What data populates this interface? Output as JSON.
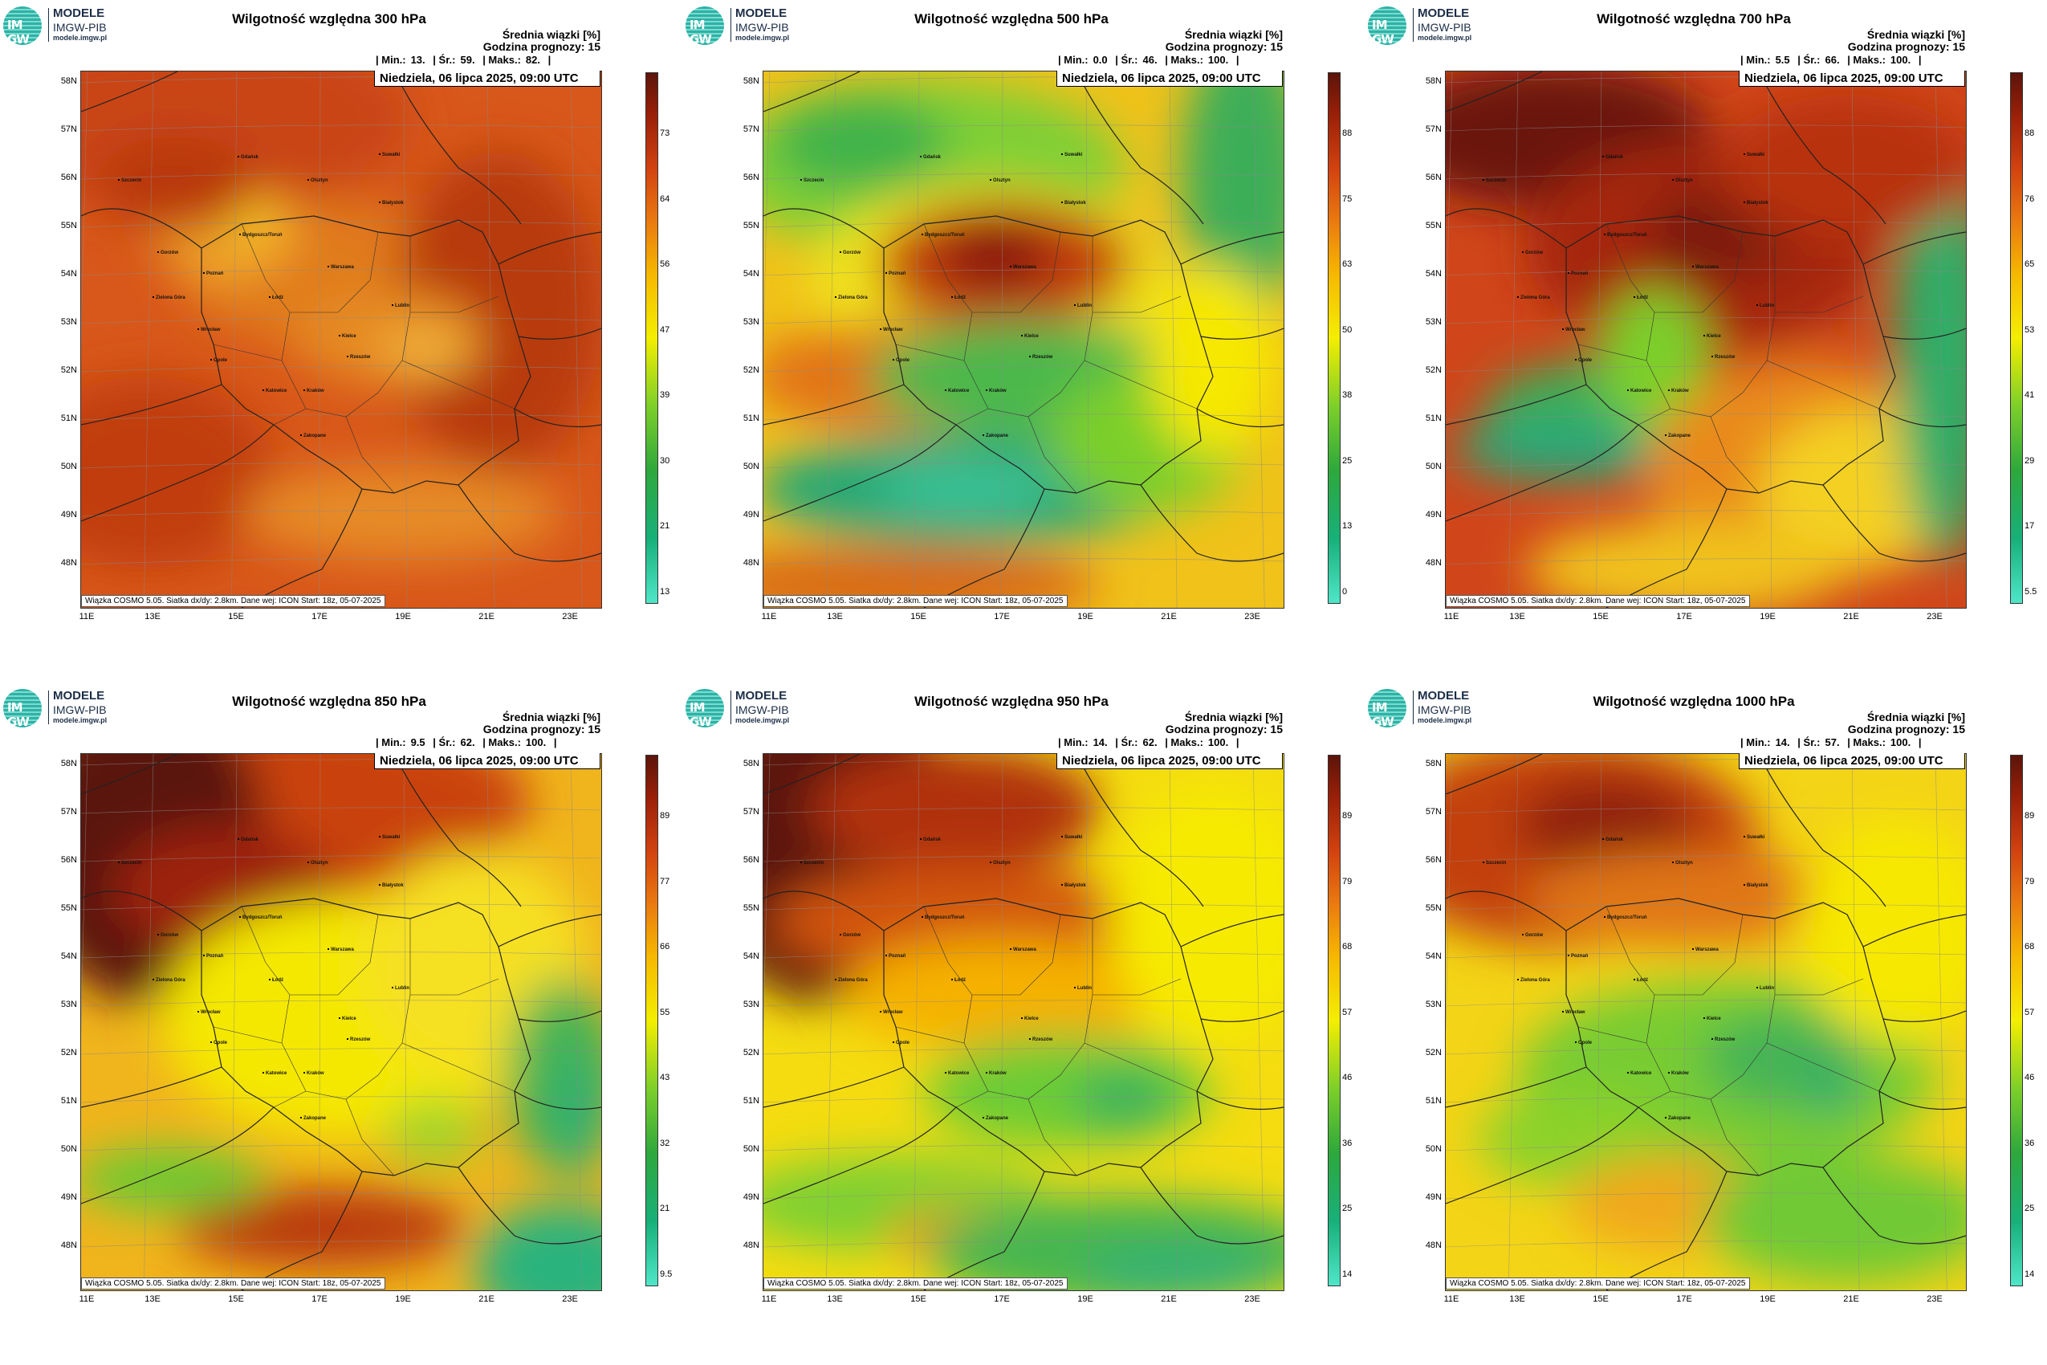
{
  "logo": {
    "badge": "IM GW",
    "line1": "MODELE",
    "line2": "IMGW-PIB",
    "line3": "modele.imgw.pl"
  },
  "common": {
    "info1": "Średnia wiązki [%]",
    "info2": "Godzina prognozy: 15",
    "date": "Niedziela, 06 lipca 2025, 09:00 UTC",
    "footer": "Wiązka COSMO 5.05. Siatka dx/dy: 2.8km. Dane wej: ICON Start: 18z, 05-07-2025",
    "min_label": "| Min.:",
    "avg_label": "| Śr.:",
    "max_label": "| Maks.:",
    "end_bar": "|"
  },
  "lat_labels": [
    "58N",
    "57N",
    "56N",
    "55N",
    "54N",
    "53N",
    "52N",
    "51N",
    "50N",
    "49N",
    "48N"
  ],
  "lon_labels": [
    "11E",
    "13E",
    "15E",
    "17E",
    "19E",
    "21E",
    "23E"
  ],
  "cities": [
    "Szczecin",
    "Gdańsk",
    "Olsztyn",
    "Białystok",
    "Suwałki",
    "Bydgoszcz/Toruń",
    "Gorzów",
    "Poznań",
    "Warszawa",
    "Zielona Góra",
    "Łódź",
    "Lublin",
    "Wrocław",
    "Opole",
    "Kielce",
    "Katowice",
    "Kraków",
    "Rzeszów",
    "Zakopane"
  ],
  "colors": {
    "c1": "#4fe6c8",
    "c2": "#18b07a",
    "c3": "#2ea83c",
    "c4": "#7ccf2a",
    "c5": "#f4ee00",
    "c6": "#f6b800",
    "c7": "#ea7a10",
    "c8": "#d24210",
    "c9": "#9a2008",
    "c10": "#5c140a"
  },
  "panels": [
    {
      "title": "Wilgotność względna 300 hPa",
      "min": "13.",
      "avg": "59.",
      "max": "82.",
      "colorbar": [
        "73",
        "64",
        "56",
        "47",
        "39",
        "30",
        "21",
        "13"
      ],
      "bg": "#d8571a",
      "blobs": [
        [
          "#c94512",
          150,
          60,
          260,
          120
        ],
        [
          "#e07a1f",
          300,
          250,
          180,
          90
        ],
        [
          "#f0a62a",
          180,
          200,
          90,
          60
        ],
        [
          "#f6d020",
          200,
          180,
          40,
          25
        ],
        [
          "#b73a10",
          520,
          300,
          130,
          200
        ],
        [
          "#e58a22",
          380,
          330,
          120,
          60
        ],
        [
          "#f1b33a",
          430,
          350,
          60,
          30
        ],
        [
          "#c13c11",
          80,
          500,
          160,
          120
        ],
        [
          "#e68a25",
          400,
          550,
          200,
          60
        ],
        [
          "#b9380f",
          120,
          140,
          100,
          60
        ]
      ]
    },
    {
      "title": "Wilgotność względna 500 hPa",
      "min": "0.0",
      "avg": "46.",
      "max": "100.",
      "colorbar": [
        "88",
        "75",
        "63",
        "50",
        "38",
        "25",
        "13",
        "0"
      ],
      "bg": "#f0c21a",
      "blobs": [
        [
          "#7fcf35",
          200,
          120,
          250,
          110
        ],
        [
          "#3fb34a",
          120,
          90,
          110,
          60
        ],
        [
          "#f0e41c",
          280,
          260,
          220,
          120
        ],
        [
          "#c2410d",
          300,
          240,
          160,
          80
        ],
        [
          "#8a1e08",
          290,
          230,
          70,
          45
        ],
        [
          "#e27513",
          180,
          380,
          200,
          70
        ],
        [
          "#4bb84c",
          330,
          380,
          200,
          70
        ],
        [
          "#2ba874",
          250,
          520,
          260,
          70
        ],
        [
          "#3cc49a",
          250,
          520,
          110,
          30
        ],
        [
          "#7ccf2a",
          480,
          460,
          120,
          90
        ],
        [
          "#d86a14",
          160,
          640,
          260,
          50
        ],
        [
          "#3dae58",
          600,
          130,
          80,
          180
        ],
        [
          "#f6e800",
          560,
          360,
          80,
          120
        ]
      ]
    },
    {
      "title": "Wilgotność względna 700 hPa",
      "min": "5.5",
      "avg": "66.",
      "max": "100.",
      "colorbar": [
        "88",
        "76",
        "65",
        "53",
        "41",
        "29",
        "17",
        "5.5"
      ],
      "bg": "#d0461a",
      "blobs": [
        [
          "#6a170a",
          130,
          80,
          200,
          90
        ],
        [
          "#a5260b",
          320,
          220,
          220,
          130
        ],
        [
          "#7b1a08",
          340,
          200,
          90,
          60
        ],
        [
          "#3cae55",
          200,
          420,
          150,
          60
        ],
        [
          "#2ba878",
          150,
          470,
          140,
          40
        ],
        [
          "#7ccf2a",
          260,
          360,
          70,
          90
        ],
        [
          "#e98a1a",
          450,
          500,
          200,
          140
        ],
        [
          "#f4d020",
          520,
          520,
          130,
          100
        ],
        [
          "#2fae68",
          620,
          350,
          60,
          260
        ],
        [
          "#f0c21a",
          300,
          620,
          200,
          60
        ],
        [
          "#b83211",
          500,
          120,
          160,
          90
        ]
      ]
    },
    {
      "title": "Wilgotność względna 850 hPa",
      "min": "9.5",
      "avg": "62.",
      "max": "100.",
      "colorbar": [
        "89",
        "77",
        "66",
        "55",
        "43",
        "32",
        "21",
        "9.5"
      ],
      "bg": "#f0b41c",
      "blobs": [
        [
          "#c9420f",
          230,
          60,
          330,
          120
        ],
        [
          "#5a140a",
          80,
          110,
          150,
          200
        ],
        [
          "#9d2309",
          180,
          170,
          140,
          80
        ],
        [
          "#f4e800",
          330,
          330,
          230,
          150
        ],
        [
          "#f6e020",
          490,
          260,
          140,
          140
        ],
        [
          "#47b452",
          600,
          400,
          70,
          120
        ],
        [
          "#2aaf75",
          620,
          450,
          30,
          80
        ],
        [
          "#b93a10",
          300,
          590,
          180,
          50
        ],
        [
          "#2bb37d",
          600,
          640,
          110,
          80
        ],
        [
          "#6ac932",
          110,
          530,
          120,
          40
        ],
        [
          "#9ed42a",
          440,
          470,
          60,
          40
        ]
      ]
    },
    {
      "title": "Wilgotność względna 950 hPa",
      "min": "14.",
      "avg": "62.",
      "max": "100.",
      "colorbar": [
        "89",
        "79",
        "68",
        "57",
        "46",
        "36",
        "25",
        "14"
      ],
      "bg": "#f4dc10",
      "blobs": [
        [
          "#5c140a",
          80,
          110,
          170,
          200
        ],
        [
          "#b03010",
          240,
          70,
          180,
          80
        ],
        [
          "#d25410",
          260,
          210,
          250,
          70
        ],
        [
          "#f5b100",
          300,
          300,
          200,
          70
        ],
        [
          "#6ccc34",
          380,
          420,
          180,
          70
        ],
        [
          "#3cb35c",
          450,
          430,
          60,
          40
        ],
        [
          "#7fd033",
          160,
          560,
          200,
          60
        ],
        [
          "#e89a18",
          300,
          600,
          150,
          40
        ],
        [
          "#46b64f",
          450,
          620,
          250,
          70
        ],
        [
          "#2fb07a",
          520,
          650,
          120,
          30
        ],
        [
          "#f6ea00",
          560,
          200,
          130,
          160
        ]
      ]
    },
    {
      "title": "Wilgotność względna 1000 hPa",
      "min": "14.",
      "avg": "57.",
      "max": "100.",
      "colorbar": [
        "89",
        "79",
        "68",
        "57",
        "46",
        "36",
        "25",
        "14"
      ],
      "bg": "#f3d416",
      "blobs": [
        [
          "#c3410f",
          150,
          110,
          240,
          130
        ],
        [
          "#8f2009",
          200,
          90,
          110,
          60
        ],
        [
          "#e07614",
          300,
          180,
          200,
          60
        ],
        [
          "#78cc30",
          350,
          400,
          260,
          120
        ],
        [
          "#45b455",
          420,
          380,
          100,
          60
        ],
        [
          "#2fae6c",
          480,
          420,
          40,
          30
        ],
        [
          "#8bd22c",
          160,
          480,
          120,
          60
        ],
        [
          "#f0a91a",
          280,
          560,
          130,
          60
        ],
        [
          "#6fc934",
          500,
          580,
          180,
          80
        ],
        [
          "#f6e800",
          560,
          220,
          120,
          140
        ]
      ]
    }
  ]
}
